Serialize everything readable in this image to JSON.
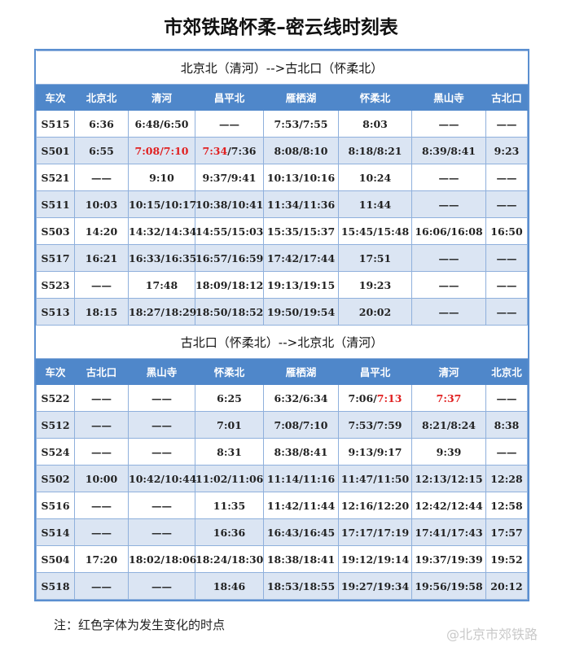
{
  "title": "市郊铁路怀柔–密云线时刻表",
  "colors": {
    "header": "#4f87ca",
    "alt_row": "#dbe5f3",
    "changed": "#e02020"
  },
  "sections": [
    {
      "heading": "北京北（清河）-->古北口（怀柔北）",
      "columns": [
        "车次",
        "北京北",
        "清河",
        "昌平北",
        "雁栖湖",
        "怀柔北",
        "黑山寺",
        "古北口"
      ],
      "rows": [
        [
          "S515",
          "6:36",
          "6:48/6:50",
          "——",
          "7:53/7:55",
          "8:03",
          "——",
          "——"
        ],
        [
          "S501",
          "6:55",
          [
            {
              "t": "7:08/7:10",
              "red": true
            }
          ],
          [
            {
              "t": "7:34",
              "red": true
            },
            {
              "t": "/7:36"
            }
          ],
          "8:08/8:10",
          "8:18/8:21",
          "8:39/8:41",
          "9:23"
        ],
        [
          "S521",
          "——",
          "9:10",
          "9:37/9:41",
          "10:13/10:16",
          "10:24",
          "——",
          "——"
        ],
        [
          "S511",
          "10:03",
          "10:15/10:17",
          "10:38/10:41",
          "11:34/11:36",
          "11:44",
          "——",
          "——"
        ],
        [
          "S503",
          "14:20",
          "14:32/14:34",
          "14:55/15:03",
          "15:35/15:37",
          "15:45/15:48",
          "16:06/16:08",
          "16:50"
        ],
        [
          "S517",
          "16:21",
          "16:33/16:35",
          "16:57/16:59",
          "17:42/17:44",
          "17:51",
          "——",
          "——"
        ],
        [
          "S523",
          "——",
          "17:48",
          "18:09/18:12",
          "19:13/19:15",
          "19:23",
          "——",
          "——"
        ],
        [
          "S513",
          "18:15",
          "18:27/18:29",
          "18:50/18:52",
          "19:50/19:54",
          "20:02",
          "——",
          "——"
        ]
      ]
    },
    {
      "heading": "古北口（怀柔北）-->北京北（清河）",
      "columns": [
        "车次",
        "古北口",
        "黑山寺",
        "怀柔北",
        "雁栖湖",
        "昌平北",
        "清河",
        "北京北"
      ],
      "rows": [
        [
          "S522",
          "——",
          "——",
          "6:25",
          "6:32/6:34",
          [
            {
              "t": "7:06/"
            },
            {
              "t": "7:13",
              "red": true
            }
          ],
          [
            {
              "t": "7:37",
              "red": true
            }
          ],
          "——"
        ],
        [
          "S512",
          "——",
          "——",
          "7:01",
          "7:08/7:10",
          "7:53/7:59",
          "8:21/8:24",
          "8:38"
        ],
        [
          "S524",
          "——",
          "——",
          "8:31",
          "8:38/8:41",
          "9:13/9:17",
          "9:39",
          "——"
        ],
        [
          "S502",
          "10:00",
          "10:42/10:44",
          "11:02/11:06",
          "11:14/11:16",
          "11:47/11:50",
          "12:13/12:15",
          "12:28"
        ],
        [
          "S516",
          "——",
          "——",
          "11:35",
          "11:42/11:44",
          "12:16/12:20",
          "12:42/12:44",
          "12:58"
        ],
        [
          "S514",
          "——",
          "——",
          "16:36",
          "16:43/16:45",
          "17:17/17:19",
          "17:41/17:43",
          "17:57"
        ],
        [
          "S504",
          "17:20",
          "18:02/18:06",
          "18:24/18:30",
          "18:38/18:41",
          "19:12/19:14",
          "19:37/19:39",
          "19:52"
        ],
        [
          "S518",
          "——",
          "——",
          "18:46",
          "18:53/18:55",
          "19:27/19:34",
          "19:56/19:58",
          "20:12"
        ]
      ]
    }
  ],
  "note": "注：红色字体为发生变化的时点",
  "watermark": "@北京市郊铁路"
}
